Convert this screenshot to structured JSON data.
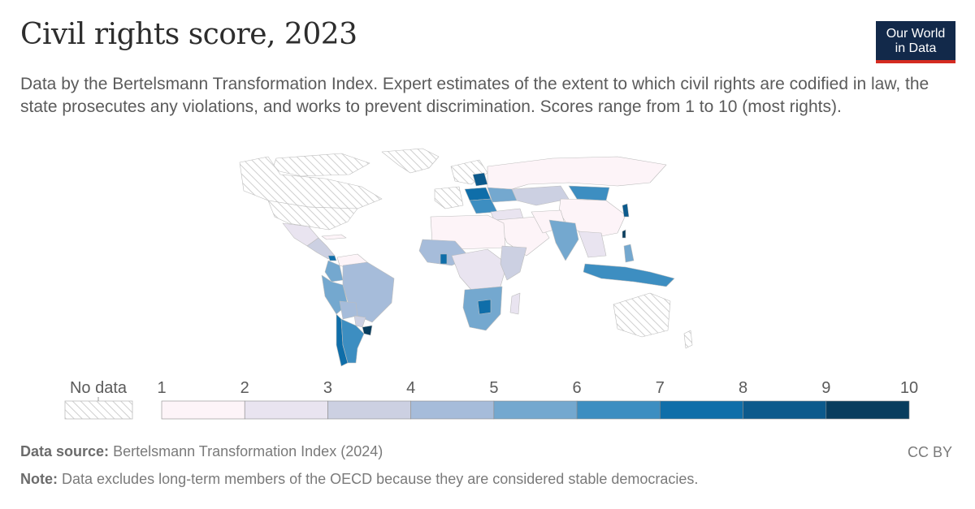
{
  "header": {
    "title": "Civil rights score, 2023",
    "subtitle": "Data by the Bertelsmann Transformation Index. Expert estimates of the extent to which civil rights are codified in law, the state prosecutes any violations, and works to prevent discrimination. Scores range from 1 to 10 (most rights).",
    "logo_line1": "Our World",
    "logo_line2": "in Data"
  },
  "legend": {
    "no_data_label": "No data",
    "ticks": [
      "1",
      "2",
      "3",
      "4",
      "5",
      "6",
      "7",
      "8",
      "9",
      "10"
    ],
    "colors": [
      "#fdf4f8",
      "#e9e4f0",
      "#ccd0e2",
      "#a6bcda",
      "#74a8cf",
      "#3d8ec1",
      "#0f6ea9",
      "#0c5a8c",
      "#083d5e"
    ],
    "no_data_color": "#d9d9d9"
  },
  "footer": {
    "source_label": "Data source:",
    "source_text": "Bertelsmann Transformation Index (2024)",
    "note_label": "Note:",
    "note_text": "Data excludes long-term members of the OECD because they are considered stable democracies.",
    "license": "CC BY"
  }
}
